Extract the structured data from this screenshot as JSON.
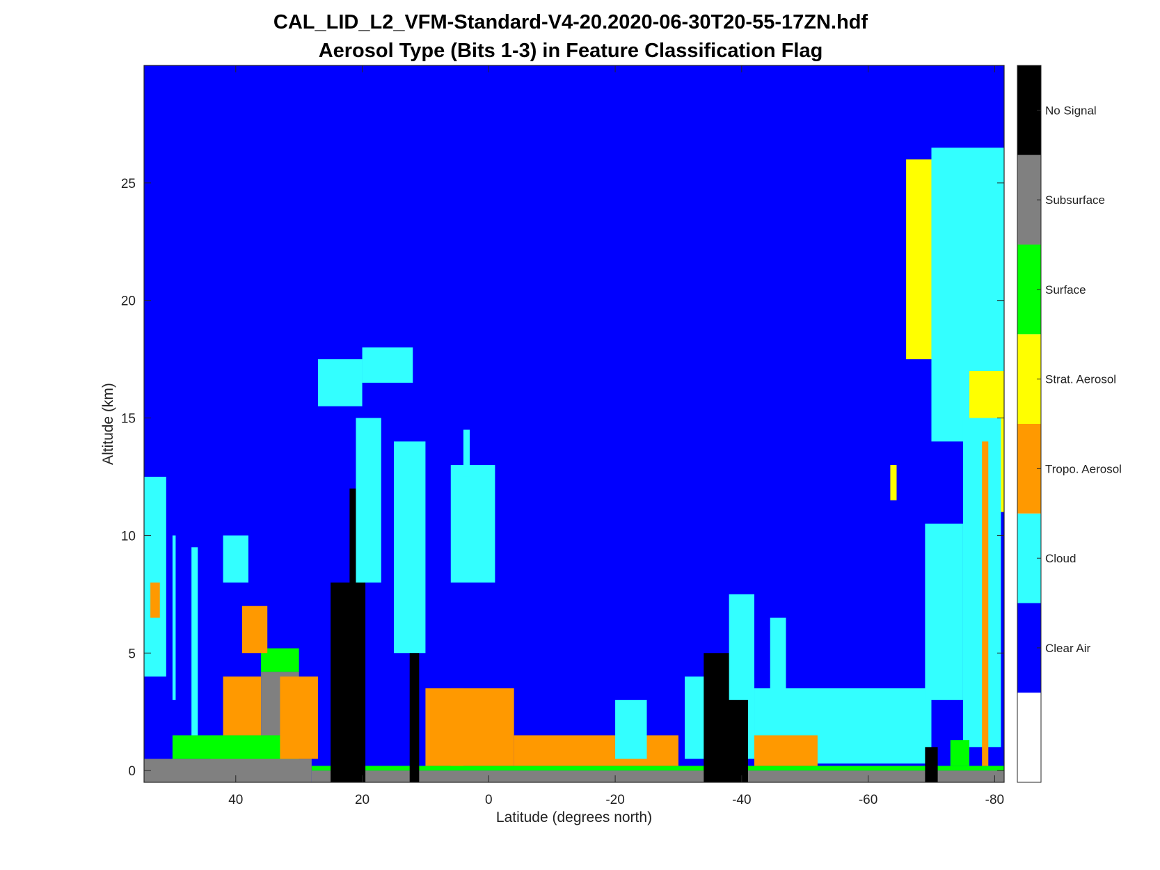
{
  "chart_data": {
    "type": "heatmap",
    "title": "CAL_LID_L2_VFM-Standard-V4-20.2020-06-30T20-55-17ZN.hdf",
    "subtitle": "Aerosol Type (Bits 1-3) in Feature Classification Flag",
    "xlabel": "Latitude (degrees north)",
    "ylabel": "Altitude (km)",
    "xlim": [
      54.5,
      -81.5
    ],
    "ylim": [
      -0.5,
      30
    ],
    "x_ticks": [
      40,
      20,
      0,
      -20,
      -40,
      -60,
      -80
    ],
    "x_tick_labels": [
      "40",
      "20",
      "0",
      "-20",
      "-40",
      "-60",
      "-80"
    ],
    "y_ticks": [
      0,
      5,
      10,
      15,
      20,
      25
    ],
    "y_tick_labels": [
      "0",
      "5",
      "10",
      "15",
      "20",
      "25"
    ],
    "colorbar": [
      {
        "label": "",
        "color": "#ffffff"
      },
      {
        "label": "Clear Air",
        "color": "#0000ff"
      },
      {
        "label": "Cloud",
        "color": "#33ffff"
      },
      {
        "label": "Tropo. Aerosol",
        "color": "#ff9900"
      },
      {
        "label": "Strat. Aerosol",
        "color": "#ffff00"
      },
      {
        "label": "Surface",
        "color": "#00ff00"
      },
      {
        "label": "Subsurface",
        "color": "#808080"
      },
      {
        "label": "No Signal",
        "color": "#000000"
      }
    ],
    "background_class": "Clear Air",
    "features": [
      {
        "class": "Subsurface",
        "lat": [
          54.5,
          28
        ],
        "alt": [
          -0.5,
          0.5
        ]
      },
      {
        "class": "Subsurface",
        "lat": [
          44,
          36
        ],
        "alt": [
          -0.5,
          1.5
        ]
      },
      {
        "class": "Subsurface",
        "lat": [
          36,
          30
        ],
        "alt": [
          -0.5,
          4.2
        ]
      },
      {
        "class": "Surface",
        "lat": [
          50,
          30
        ],
        "alt": [
          0.5,
          1.5
        ]
      },
      {
        "class": "Surface",
        "lat": [
          36,
          30
        ],
        "alt": [
          4.2,
          5.2
        ]
      },
      {
        "class": "Subsurface",
        "lat": [
          28,
          -81.5
        ],
        "alt": [
          -0.5,
          0.0
        ]
      },
      {
        "class": "Surface",
        "lat": [
          28,
          -81.5
        ],
        "alt": [
          0.0,
          0.2
        ]
      },
      {
        "class": "Cloud",
        "lat": [
          54.5,
          51
        ],
        "alt": [
          4,
          12.5
        ]
      },
      {
        "class": "Tropo. Aerosol",
        "lat": [
          53.5,
          52
        ],
        "alt": [
          6.5,
          8
        ]
      },
      {
        "class": "Cloud",
        "lat": [
          50,
          49.5
        ],
        "alt": [
          3,
          10
        ]
      },
      {
        "class": "Cloud",
        "lat": [
          47,
          46
        ],
        "alt": [
          1.5,
          9.5
        ]
      },
      {
        "class": "Tropo. Aerosol",
        "lat": [
          42,
          36
        ],
        "alt": [
          1.5,
          4
        ]
      },
      {
        "class": "Cloud",
        "lat": [
          42,
          38
        ],
        "alt": [
          8,
          10
        ]
      },
      {
        "class": "Tropo. Aerosol",
        "lat": [
          39,
          35
        ],
        "alt": [
          5,
          7
        ]
      },
      {
        "class": "Tropo. Aerosol",
        "lat": [
          33,
          27
        ],
        "alt": [
          0.5,
          4
        ]
      },
      {
        "class": "No Signal",
        "lat": [
          25,
          21
        ],
        "alt": [
          -0.5,
          8
        ]
      },
      {
        "class": "No Signal",
        "lat": [
          22,
          19.5
        ],
        "alt": [
          -0.5,
          12
        ]
      },
      {
        "class": "Cloud",
        "lat": [
          21,
          17
        ],
        "alt": [
          8,
          15
        ]
      },
      {
        "class": "Cloud",
        "lat": [
          27,
          20
        ],
        "alt": [
          15.5,
          17.5
        ]
      },
      {
        "class": "Cloud",
        "lat": [
          20,
          12
        ],
        "alt": [
          16.5,
          18
        ]
      },
      {
        "class": "Cloud",
        "lat": [
          15,
          10
        ],
        "alt": [
          5,
          14
        ]
      },
      {
        "class": "No Signal",
        "lat": [
          12.5,
          11
        ],
        "alt": [
          -0.5,
          5
        ]
      },
      {
        "class": "Tropo. Aerosol",
        "lat": [
          10,
          4
        ],
        "alt": [
          0.2,
          3.5
        ]
      },
      {
        "class": "Cloud",
        "lat": [
          6,
          -1
        ],
        "alt": [
          8,
          13
        ]
      },
      {
        "class": "Cloud",
        "lat": [
          4,
          3
        ],
        "alt": [
          12.5,
          14.5
        ]
      },
      {
        "class": "Tropo. Aerosol",
        "lat": [
          6,
          -4
        ],
        "alt": [
          0.2,
          3.5
        ]
      },
      {
        "class": "Tropo. Aerosol",
        "lat": [
          -4,
          -30
        ],
        "alt": [
          0.2,
          1.5
        ]
      },
      {
        "class": "Cloud",
        "lat": [
          -20,
          -25
        ],
        "alt": [
          0.5,
          3
        ]
      },
      {
        "class": "Cloud",
        "lat": [
          -31,
          -42
        ],
        "alt": [
          0.5,
          4
        ]
      },
      {
        "class": "No Signal",
        "lat": [
          -34,
          -41
        ],
        "alt": [
          -0.5,
          5
        ]
      },
      {
        "class": "Cloud",
        "lat": [
          -38,
          -42
        ],
        "alt": [
          3,
          7.5
        ]
      },
      {
        "class": "Cloud",
        "lat": [
          -42,
          -70
        ],
        "alt": [
          0.3,
          3.5
        ]
      },
      {
        "class": "Tropo. Aerosol",
        "lat": [
          -42,
          -52
        ],
        "alt": [
          0.2,
          1.5
        ]
      },
      {
        "class": "Cloud",
        "lat": [
          -44.5,
          -47
        ],
        "alt": [
          3,
          6.5
        ]
      },
      {
        "class": "Strat. Aerosol",
        "lat": [
          -63.5,
          -64.5
        ],
        "alt": [
          11.5,
          13
        ]
      },
      {
        "class": "Strat. Aerosol",
        "lat": [
          -66,
          -70
        ],
        "alt": [
          17.5,
          26
        ]
      },
      {
        "class": "Cloud",
        "lat": [
          -70,
          -81.5
        ],
        "alt": [
          14,
          26.5
        ]
      },
      {
        "class": "Strat. Aerosol",
        "lat": [
          -76,
          -81.5
        ],
        "alt": [
          11,
          17
        ]
      },
      {
        "class": "Cloud",
        "lat": [
          -69,
          -75
        ],
        "alt": [
          3,
          10.5
        ]
      },
      {
        "class": "Cloud",
        "lat": [
          -75,
          -81
        ],
        "alt": [
          1,
          15
        ]
      },
      {
        "class": "Tropo. Aerosol",
        "lat": [
          -78,
          -79
        ],
        "alt": [
          0.2,
          14
        ]
      },
      {
        "class": "No Signal",
        "lat": [
          -69,
          -71
        ],
        "alt": [
          -0.5,
          1
        ]
      },
      {
        "class": "Surface",
        "lat": [
          -73,
          -76
        ],
        "alt": [
          0.2,
          1.3
        ]
      }
    ]
  }
}
